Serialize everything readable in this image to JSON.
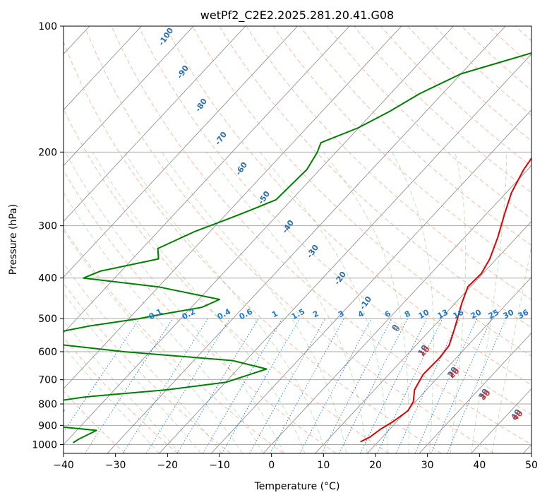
{
  "chart_data": {
    "type": "line",
    "title": "wetPf2_C2E2.2025.281.20.41.G08",
    "xlabel": "Temperature (°C)",
    "ylabel": "Pressure (hPa)",
    "xlim": [
      -40,
      50
    ],
    "ylim": [
      1050,
      100
    ],
    "x_ticks": [
      "−40",
      "−30",
      "−20",
      "−10",
      "0",
      "10",
      "20",
      "30",
      "40",
      "50"
    ],
    "x_tick_values": [
      -40,
      -30,
      -20,
      -10,
      0,
      10,
      20,
      30,
      40,
      50
    ],
    "y_ticks": [
      "100",
      "200",
      "300",
      "400",
      "500",
      "600",
      "700",
      "800",
      "900",
      "1000"
    ],
    "y_tick_values": [
      100,
      200,
      300,
      400,
      500,
      600,
      700,
      800,
      900,
      1000
    ],
    "grid": true,
    "skew_deg_per_log_decade": 75,
    "series": [
      {
        "name": "temperature",
        "color": "#e00000",
        "pressure": [
          100,
          115,
          130,
          150,
          170,
          185,
          200,
          220,
          250,
          280,
          320,
          360,
          390,
          420,
          460,
          500,
          540,
          580,
          620,
          680,
          740,
          790,
          830,
          880,
          920,
          960,
          985
        ],
        "temperature": [
          16.5,
          14.0,
          9.0,
          1.5,
          -1.2,
          -1.5,
          -1.6,
          -0.8,
          1.0,
          3.4,
          6.4,
          8.7,
          9.7,
          9.5,
          11.3,
          13.2,
          14.9,
          16.4,
          16.8,
          16.6,
          17.7,
          19.6,
          20.2,
          19.3,
          18.2,
          17.6,
          16.6
        ]
      },
      {
        "name": "dewpoint",
        "color": "#008000",
        "pressure": [
          100,
          115,
          130,
          145,
          160,
          175,
          190,
          200,
          220,
          260,
          275,
          290,
          310,
          340,
          360,
          385,
          400,
          420,
          450,
          470,
          490,
          500,
          520,
          545,
          565,
          600,
          630,
          660,
          680,
          710,
          740,
          770,
          800,
          830,
          850,
          875,
          900,
          925,
          945,
          970,
          990
        ],
        "temperature": [
          -10.1,
          -19.5,
          -30.0,
          -34.4,
          -37.0,
          -40.1,
          -44.6,
          -43.6,
          -42.5,
          -43.0,
          -46.0,
          -49.0,
          -53.0,
          -57.0,
          -55.0,
          -64.0,
          -66.0,
          -50.0,
          -36.0,
          -38.0,
          -45.0,
          -48.0,
          -56.0,
          -63.0,
          -66.0,
          -45.0,
          -22.5,
          -14.5,
          -16.7,
          -19.9,
          -30.0,
          -44.5,
          -52.3,
          -46.0,
          -49.4,
          -56.0,
          -47.1,
          -36.2,
          -37.0,
          -38.0,
          -38.5
        ]
      }
    ],
    "dry_adiabat_labels": [
      "-100",
      "-90",
      "-80",
      "-70",
      "-60",
      "-50",
      "-40",
      "-30",
      "-20",
      "-10",
      "0",
      "10",
      "20",
      "30",
      "40"
    ],
    "mixing_ratio_labels": [
      "0.1",
      "0.2",
      "0.4",
      "0.6",
      "1",
      "1.5",
      "2",
      "3",
      "4",
      "6",
      "8",
      "10",
      "13",
      "16",
      "20",
      "25",
      "30",
      "36"
    ],
    "moist_adiabat_labels": [
      "0",
      "10",
      "20",
      "30",
      "40"
    ],
    "colors": {
      "isotherm": "#888888",
      "isobar": "#aaaaaa",
      "dry_adiabat": "#f4a582",
      "moist_adiabat": "#4daf4a",
      "mixing_ratio": "#1e78d0",
      "dry_adiabat_label": "#2a6fa8",
      "moist_adiabat_label": "#d03030",
      "moist_adiabat_zero_label": "#888888"
    }
  }
}
